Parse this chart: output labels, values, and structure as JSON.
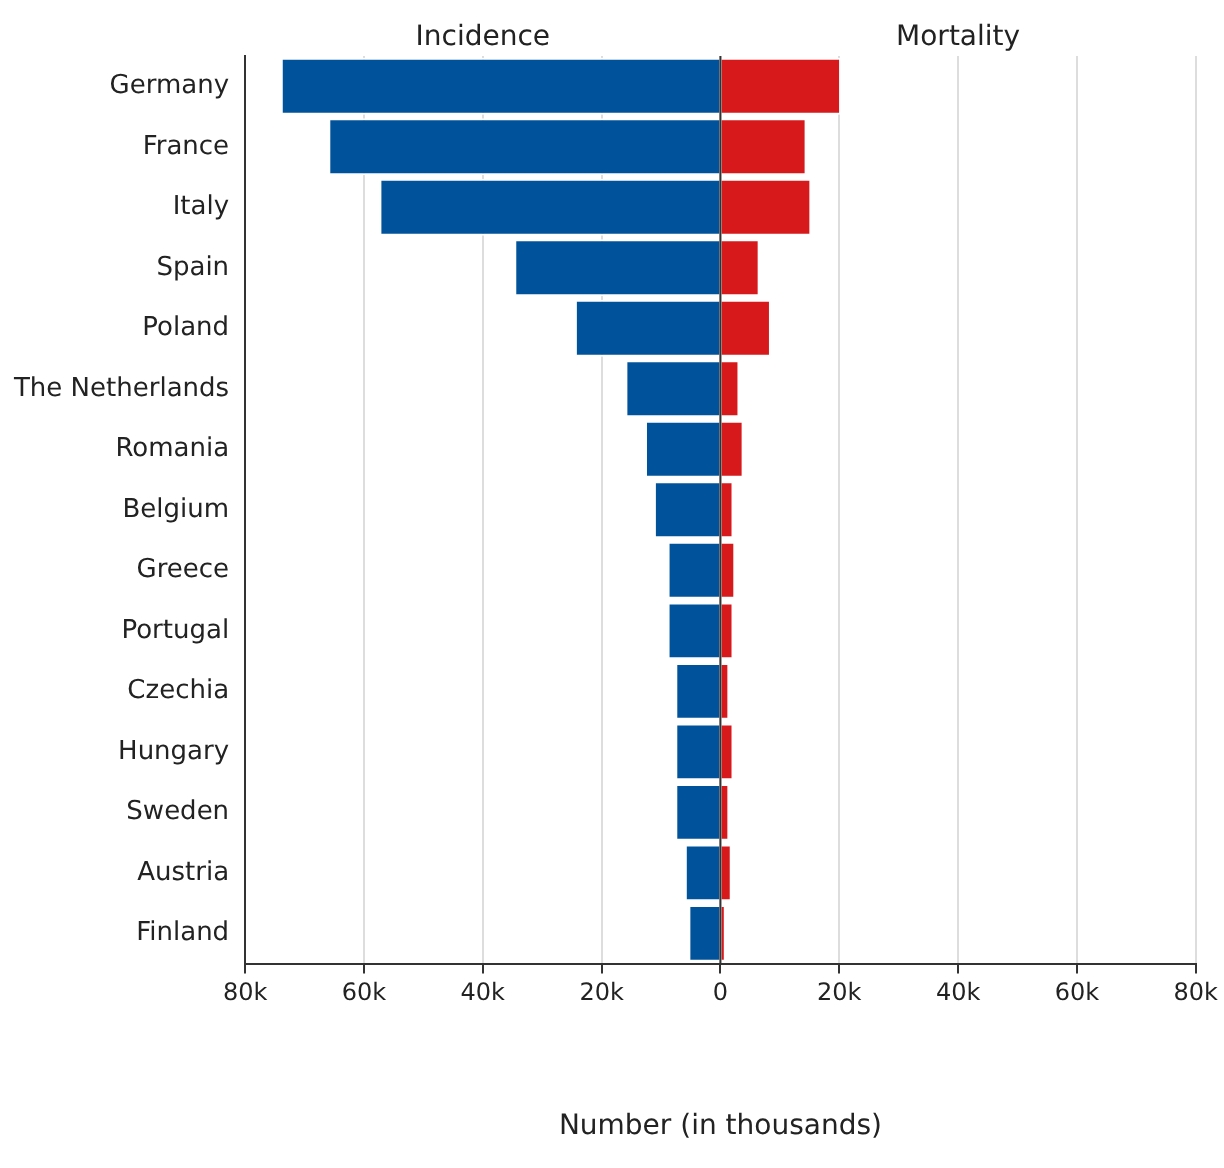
{
  "chart_data": {
    "type": "bar",
    "orientation": "horizontal",
    "stacked": true,
    "xlabel": "Number (in thousands)",
    "categories": [
      "Germany",
      "France",
      "Italy",
      "Spain",
      "Poland",
      "The Netherlands",
      "Romania",
      "Belgium",
      "Greece",
      "Portugal",
      "Czechia",
      "Hungary",
      "Sweden",
      "Austria",
      "Finland"
    ],
    "series": [
      {
        "name": "Incidence",
        "color": "#00539b",
        "values": [
          -74000,
          -66000,
          -57400,
          -34700,
          -24500,
          -16000,
          -12700,
          -11200,
          -8900,
          -8900,
          -7600,
          -7600,
          -7600,
          -6000,
          -5400
        ]
      },
      {
        "name": "Mortality",
        "color": "#d7191c",
        "values": [
          20300,
          14500,
          15300,
          6600,
          8500,
          3200,
          3900,
          2200,
          2500,
          2200,
          1500,
          2200,
          1500,
          1900,
          900
        ]
      }
    ],
    "xlim": [
      -80000,
      80000
    ],
    "xticks": [
      {
        "value": -80000,
        "label": "80k"
      },
      {
        "value": -60000,
        "label": "60k"
      },
      {
        "value": -40000,
        "label": "40k"
      },
      {
        "value": -20000,
        "label": "20k"
      },
      0,
      {
        "value": 20000,
        "label": "20k"
      },
      {
        "value": 40000,
        "label": "40k"
      },
      {
        "value": 60000,
        "label": "60k"
      },
      {
        "value": 80000,
        "label": "80k"
      }
    ],
    "grid": "x",
    "legend": false
  }
}
